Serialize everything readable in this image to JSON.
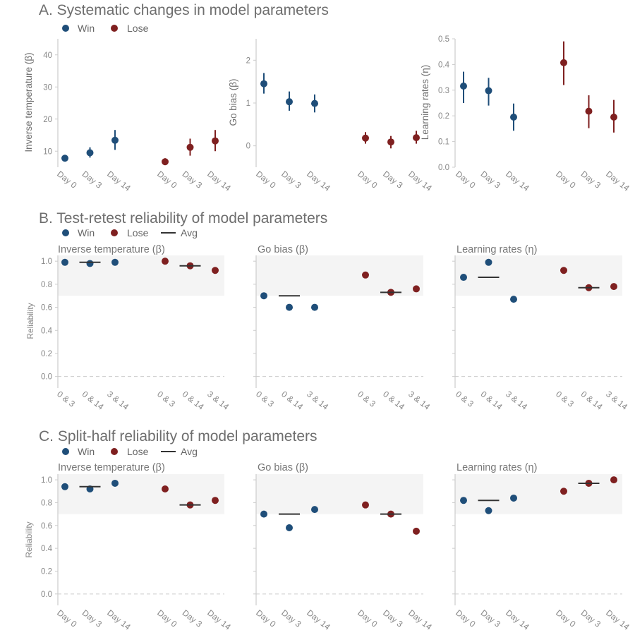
{
  "colors": {
    "win": "#1f4e79",
    "lose": "#7f2020",
    "avg": "#333333",
    "band": "#f4f4f4",
    "axis": "#cccccc",
    "dashed": "#cccccc"
  },
  "sections": {
    "a": {
      "title": "A. Systematic changes in model parameters"
    },
    "b": {
      "title": "B. Test-retest reliability of model parameters"
    },
    "c": {
      "title": "C. Split-half reliability of model parameters"
    }
  },
  "legend": {
    "win": "Win",
    "lose": "Lose",
    "avg": "Avg"
  },
  "panel_titles": {
    "temp": "Inverse temperature (β)",
    "bias": "Go bias (β)",
    "lr": "Learning rates (η)"
  },
  "ylabels": {
    "temp": "Inverse temperature (β)",
    "bias": "Go bias (β)",
    "lr": "Learning rates (η)",
    "reliability": "Reliability"
  },
  "chart_data": [
    {
      "type": "scatter",
      "section": "A",
      "panel": "temp",
      "ylabel": "Inverse temperature (β)",
      "categories": [
        "Day 0",
        "Day 3",
        "Day 14",
        "Day 0",
        "Day 3",
        "Day 14"
      ],
      "ylim": [
        5,
        45
      ],
      "yticks": [
        10,
        20,
        30,
        40
      ],
      "series": [
        {
          "name": "Win",
          "values": [
            7.8,
            9.5,
            13.4
          ],
          "err": [
            [
              6.8,
              8.8
            ],
            [
              8.0,
              11.2
            ],
            [
              10.4,
              16.6
            ]
          ]
        },
        {
          "name": "Lose",
          "values": [
            6.7,
            11.2,
            13.2
          ],
          "err": [
            [
              5.8,
              7.8
            ],
            [
              8.6,
              13.9
            ],
            [
              10.0,
              16.6
            ]
          ]
        }
      ]
    },
    {
      "type": "scatter",
      "section": "A",
      "panel": "bias",
      "ylabel": "Go bias (β)",
      "categories": [
        "Day 0",
        "Day 3",
        "Day 14",
        "Day 0",
        "Day 3",
        "Day 14"
      ],
      "ylim": [
        -0.5,
        2.5
      ],
      "yticks": [
        0,
        1,
        2
      ],
      "series": [
        {
          "name": "Win",
          "values": [
            1.45,
            1.03,
            0.99
          ],
          "err": [
            [
              1.22,
              1.7
            ],
            [
              0.82,
              1.27
            ],
            [
              0.78,
              1.2
            ]
          ]
        },
        {
          "name": "Lose",
          "values": [
            0.18,
            0.09,
            0.19
          ],
          "err": [
            [
              0.05,
              0.32
            ],
            [
              -0.06,
              0.23
            ],
            [
              0.05,
              0.35
            ]
          ]
        }
      ]
    },
    {
      "type": "scatter",
      "section": "A",
      "panel": "lr",
      "ylabel": "Learning rates (η)",
      "categories": [
        "Day 0",
        "Day 3",
        "Day 14",
        "Day 0",
        "Day 3",
        "Day 14"
      ],
      "ylim": [
        0,
        0.5
      ],
      "yticks": [
        0.0,
        0.1,
        0.2,
        0.3,
        0.4,
        0.5
      ],
      "series": [
        {
          "name": "Win",
          "values": [
            0.316,
            0.298,
            0.195
          ],
          "err": [
            [
              0.25,
              0.372
            ],
            [
              0.24,
              0.348
            ],
            [
              0.142,
              0.248
            ]
          ]
        },
        {
          "name": "Lose",
          "values": [
            0.407,
            0.218,
            0.195
          ],
          "err": [
            [
              0.32,
              0.49
            ],
            [
              0.152,
              0.28
            ],
            [
              0.135,
              0.262
            ]
          ]
        }
      ]
    },
    {
      "type": "scatter",
      "section": "B",
      "panel": "temp",
      "title": "Inverse temperature (β)",
      "ylabel": "Reliability",
      "categories": [
        "0 & 3",
        "0 & 14",
        "3 & 14",
        "0 & 3",
        "0 & 14",
        "3 & 14"
      ],
      "ylim": [
        -0.1,
        1.05
      ],
      "yticks": [
        0.0,
        0.2,
        0.4,
        0.6,
        0.8,
        1.0
      ],
      "band": [
        0.7,
        1.05
      ],
      "series": [
        {
          "name": "Win",
          "values": [
            0.99,
            0.98,
            0.99
          ]
        },
        {
          "name": "Lose",
          "values": [
            1.0,
            0.96,
            0.92
          ]
        }
      ],
      "avg": {
        "Win": 0.99,
        "Lose": 0.96
      }
    },
    {
      "type": "scatter",
      "section": "B",
      "panel": "bias",
      "title": "Go bias (β)",
      "categories": [
        "0 & 3",
        "0 & 14",
        "3 & 14",
        "0 & 3",
        "0 & 14",
        "3 & 14"
      ],
      "ylim": [
        -0.1,
        1.05
      ],
      "yticks": [
        0.0,
        0.2,
        0.4,
        0.6,
        0.8,
        1.0
      ],
      "band": [
        0.7,
        1.05
      ],
      "series": [
        {
          "name": "Win",
          "values": [
            0.7,
            0.6,
            0.6
          ]
        },
        {
          "name": "Lose",
          "values": [
            0.88,
            0.73,
            0.76
          ]
        }
      ],
      "avg": {
        "Win": 0.7,
        "Lose": 0.73
      }
    },
    {
      "type": "scatter",
      "section": "B",
      "panel": "lr",
      "title": "Learning rates (η)",
      "categories": [
        "0 & 3",
        "0 & 14",
        "3 & 14",
        "0 & 3",
        "0 & 14",
        "3 & 14"
      ],
      "ylim": [
        -0.1,
        1.05
      ],
      "yticks": [
        0.0,
        0.2,
        0.4,
        0.6,
        0.8,
        1.0
      ],
      "band": [
        0.7,
        1.05
      ],
      "series": [
        {
          "name": "Win",
          "values": [
            0.86,
            0.99,
            0.67
          ]
        },
        {
          "name": "Lose",
          "values": [
            0.92,
            0.77,
            0.78
          ]
        }
      ],
      "avg": {
        "Win": 0.86,
        "Lose": 0.77
      }
    },
    {
      "type": "scatter",
      "section": "C",
      "panel": "temp",
      "title": "Inverse temperature (β)",
      "ylabel": "Reliability",
      "categories": [
        "Day 0",
        "Day 3",
        "Day 14",
        "Day 0",
        "Day 3",
        "Day 14"
      ],
      "ylim": [
        -0.1,
        1.05
      ],
      "yticks": [
        0.0,
        0.2,
        0.4,
        0.6,
        0.8,
        1.0
      ],
      "band": [
        0.7,
        1.05
      ],
      "series": [
        {
          "name": "Win",
          "values": [
            0.94,
            0.92,
            0.97
          ]
        },
        {
          "name": "Lose",
          "values": [
            0.92,
            0.78,
            0.82
          ]
        }
      ],
      "avg": {
        "Win": 0.94,
        "Lose": 0.78
      }
    },
    {
      "type": "scatter",
      "section": "C",
      "panel": "bias",
      "title": "Go bias (β)",
      "categories": [
        "Day 0",
        "Day 3",
        "Day 14",
        "Day 0",
        "Day 3",
        "Day 14"
      ],
      "ylim": [
        -0.1,
        1.05
      ],
      "yticks": [
        0.0,
        0.2,
        0.4,
        0.6,
        0.8,
        1.0
      ],
      "band": [
        0.7,
        1.05
      ],
      "series": [
        {
          "name": "Win",
          "values": [
            0.7,
            0.58,
            0.74
          ]
        },
        {
          "name": "Lose",
          "values": [
            0.78,
            0.7,
            0.55
          ]
        }
      ],
      "avg": {
        "Win": 0.7,
        "Lose": 0.7
      }
    },
    {
      "type": "scatter",
      "section": "C",
      "panel": "lr",
      "title": "Learning rates (η)",
      "categories": [
        "Day 0",
        "Day 3",
        "Day 14",
        "Day 0",
        "Day 3",
        "Day 14"
      ],
      "ylim": [
        -0.1,
        1.05
      ],
      "yticks": [
        0.0,
        0.2,
        0.4,
        0.6,
        0.8,
        1.0
      ],
      "band": [
        0.7,
        1.05
      ],
      "series": [
        {
          "name": "Win",
          "values": [
            0.82,
            0.73,
            0.84
          ]
        },
        {
          "name": "Lose",
          "values": [
            0.9,
            0.97,
            1.0
          ]
        }
      ],
      "avg": {
        "Win": 0.82,
        "Lose": 0.97
      }
    }
  ]
}
